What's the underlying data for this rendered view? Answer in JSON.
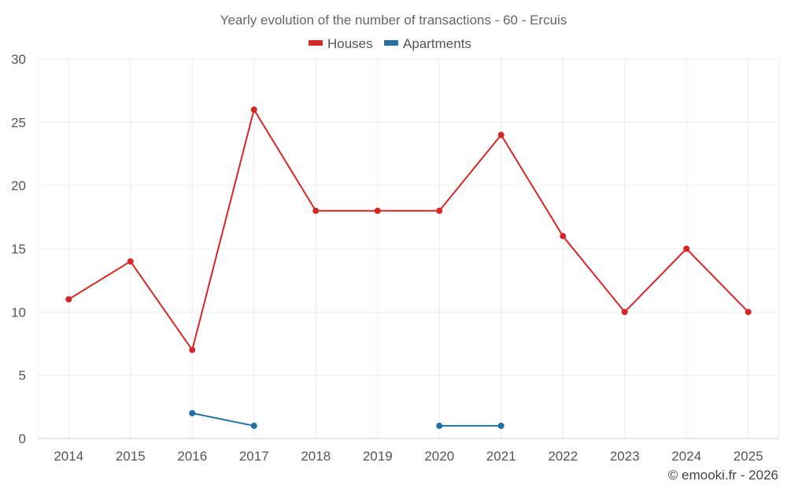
{
  "chart_data": {
    "type": "line",
    "title": "Yearly evolution of the number of transactions - 60 - Ercuis",
    "categories": [
      "2014",
      "2015",
      "2016",
      "2017",
      "2018",
      "2019",
      "2020",
      "2021",
      "2022",
      "2023",
      "2024",
      "2025"
    ],
    "series": [
      {
        "name": "Houses",
        "color": "#d62728",
        "values": [
          11,
          14,
          7,
          26,
          18,
          18,
          18,
          24,
          16,
          10,
          15,
          10
        ]
      },
      {
        "name": "Apartments",
        "color": "#1f6fa3",
        "values": [
          null,
          null,
          2,
          1,
          null,
          null,
          1,
          1,
          null,
          null,
          null,
          null
        ]
      }
    ],
    "ylim": [
      0,
      30
    ],
    "yticks": [
      0,
      5,
      10,
      15,
      20,
      25,
      30
    ],
    "xlabel": "",
    "ylabel": "",
    "grid": true,
    "legend_position": "top-center"
  },
  "credit": "© emooki.fr - 2026"
}
